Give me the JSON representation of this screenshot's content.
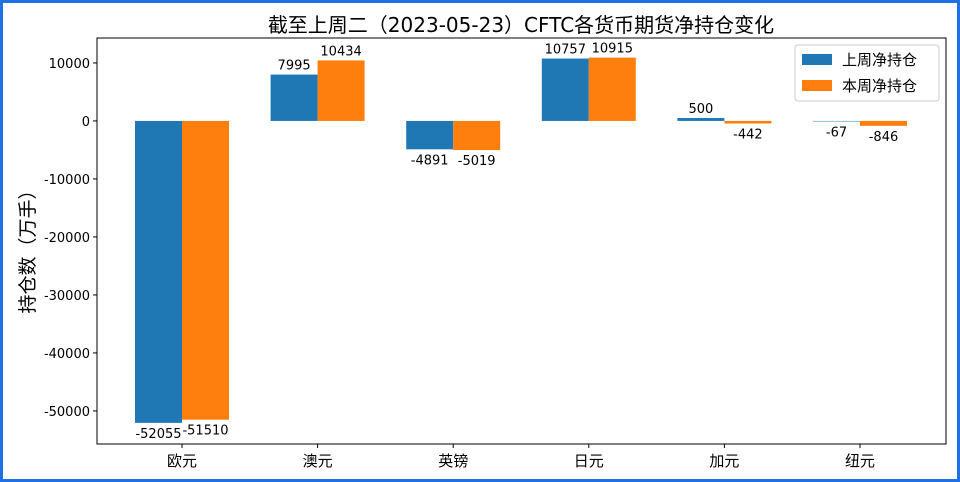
{
  "chart_data": {
    "type": "bar",
    "title": "截至上周二（2023-05-23）CFTC各货币期货净持仓变化",
    "xlabel": "",
    "ylabel": "持仓数（万手）",
    "categories": [
      "欧元",
      "澳元",
      "英镑",
      "日元",
      "加元",
      "纽元"
    ],
    "series": [
      {
        "name": "上周净持仓",
        "color": "#1f77b4",
        "values": [
          -52055,
          7995,
          -4891,
          10757,
          500,
          -67
        ]
      },
      {
        "name": "本周净持仓",
        "color": "#ff7f0e",
        "values": [
          -51510,
          10434,
          -5019,
          10915,
          -442,
          -846
        ]
      }
    ],
    "ylim": [
      -55700,
      14300
    ],
    "yticks": [
      -50000,
      -40000,
      -30000,
      -20000,
      -10000,
      0,
      10000
    ],
    "grid": false,
    "legend": "top-right"
  }
}
